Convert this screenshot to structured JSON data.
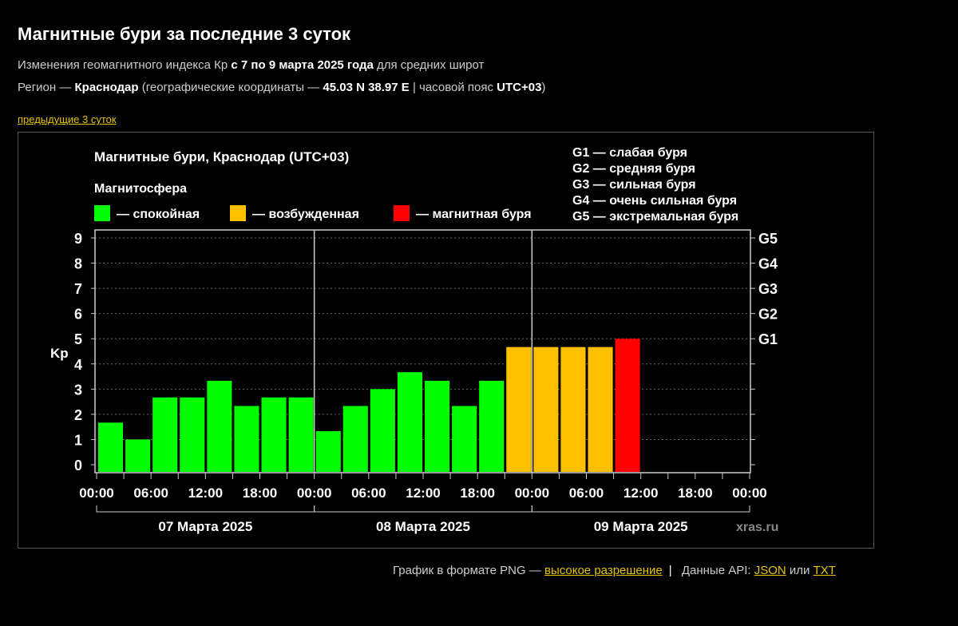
{
  "header": {
    "title": "Магнитные бури за последние 3 суток",
    "line1": {
      "a": "Изменения геомагнитного индекса Кр ",
      "b": "с 7 по 9 марта 2025 года",
      "c": " для средних широт"
    },
    "line2": {
      "a": "Регион — ",
      "b": "Краснодар",
      "c": " (географические координаты — ",
      "d": "45.03 N 38.97 E",
      "e": " | часовой пояс ",
      "f": "UTC+03",
      "g": ")"
    },
    "prev_link": "предыдущие 3 суток"
  },
  "chart_data": {
    "type": "bar",
    "title": "Магнитные бури, Краснодар (UTC+03)",
    "legend_title": "Магнитосфера",
    "legend": [
      {
        "label": "— спокойная",
        "color": "#00ff00"
      },
      {
        "label": "— возбужденная",
        "color": "#ffc000"
      },
      {
        "label": "— магнитная буря",
        "color": "#ff0000"
      }
    ],
    "storm_legend": [
      "G1 — слабая буря",
      "G2 — средняя буря",
      "G3 — сильная буря",
      "G4 — очень сильная буря",
      "G5 — экстремальная буря"
    ],
    "ylabel": "Kp",
    "ylim": [
      0,
      9
    ],
    "yticks": [
      "0",
      "1",
      "2",
      "3",
      "4",
      "5",
      "6",
      "7",
      "8",
      "9"
    ],
    "right_ticks": [
      {
        "label": "G1",
        "value": 5
      },
      {
        "label": "G2",
        "value": 6
      },
      {
        "label": "G3",
        "value": 7
      },
      {
        "label": "G4",
        "value": 8
      },
      {
        "label": "G5",
        "value": 9
      }
    ],
    "grid": true,
    "xtick_labels": [
      "00:00",
      "06:00",
      "12:00",
      "18:00",
      "00:00",
      "06:00",
      "12:00",
      "18:00",
      "00:00",
      "06:00",
      "12:00",
      "18:00",
      "00:00"
    ],
    "days": [
      "07 Марта 2025",
      "08 Марта 2025",
      "09 Марта 2025"
    ],
    "interval_hours": 3,
    "values": [
      1.67,
      1.0,
      2.67,
      2.67,
      3.33,
      2.33,
      2.67,
      2.67,
      1.33,
      2.33,
      3.0,
      3.67,
      3.33,
      2.33,
      3.33,
      4.67,
      4.67,
      4.67,
      4.67,
      5.0
    ],
    "watermark": "xras.ru"
  },
  "footer": {
    "png_text": "График в формате PNG — ",
    "png_link": "высокое разрешение",
    "api_text": " Данные API: ",
    "json_link": "JSON",
    "or": " или ",
    "txt_link": "TXT"
  }
}
